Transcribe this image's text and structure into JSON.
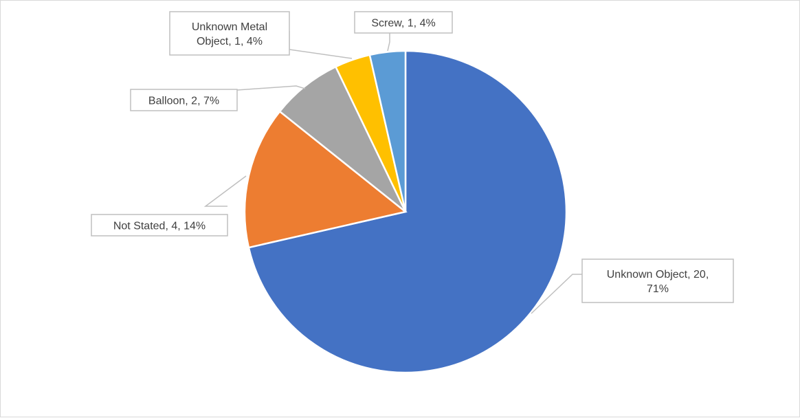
{
  "chart_data": {
    "type": "pie",
    "title": "",
    "start_angle_deg": 0,
    "direction": "clockwise",
    "legend": "none",
    "label_format": "category, value, percent",
    "slices": [
      {
        "category": "Unknown Object",
        "value": 20,
        "percent": "71%",
        "color": "#4472C4"
      },
      {
        "category": "Not Stated",
        "value": 4,
        "percent": "14%",
        "color": "#ED7D31"
      },
      {
        "category": "Balloon",
        "value": 2,
        "percent": "7%",
        "color": "#A5A5A5"
      },
      {
        "category": "Unknown Metal Object",
        "value": 1,
        "percent": "4%",
        "color": "#FFC000"
      },
      {
        "category": "Screw",
        "value": 1,
        "percent": "4%",
        "color": "#5B9BD5"
      }
    ],
    "data_labels": [
      {
        "lines": [
          "Unknown Object, 20,",
          "71%"
        ]
      },
      {
        "lines": [
          "Not Stated, 4, 14%"
        ]
      },
      {
        "lines": [
          "Balloon, 2, 7%"
        ]
      },
      {
        "lines": [
          "Unknown Metal",
          "Object, 1, 4%"
        ]
      },
      {
        "lines": [
          "Screw, 1, 4%"
        ]
      }
    ]
  }
}
